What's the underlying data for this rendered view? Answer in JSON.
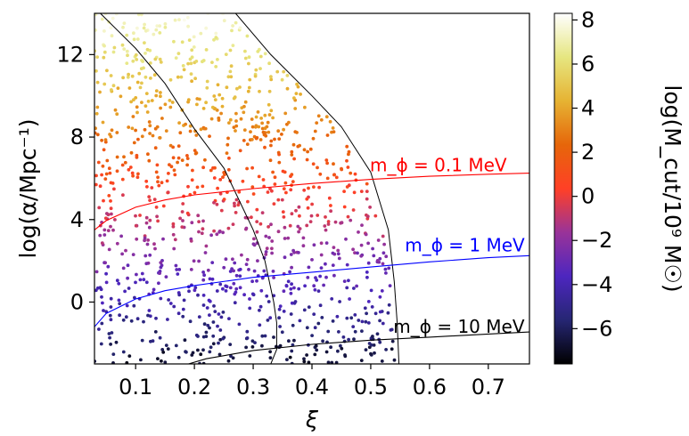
{
  "chart_data": {
    "type": "scatter",
    "xlabel": "ξ",
    "ylabel": "log(α/Mpc⁻¹)",
    "colorbar_label": "log(M_cut/10⁹ M☉)",
    "xlim": [
      0.03,
      0.77
    ],
    "ylim": [
      -3,
      14
    ],
    "x_ticks": [
      0.1,
      0.2,
      0.3,
      0.4,
      0.5,
      0.6,
      0.7
    ],
    "x_tick_labels": [
      "0.1",
      "0.2",
      "0.3",
      "0.4",
      "0.5",
      "0.6",
      "0.7"
    ],
    "y_ticks": [
      0,
      4,
      8,
      12
    ],
    "y_tick_labels": [
      "0",
      "4",
      "8",
      "12"
    ],
    "colorbar_range": [
      -7.6,
      8.3
    ],
    "colorbar_ticks": [
      -6,
      -4,
      -2,
      0,
      2,
      4,
      6,
      8
    ],
    "colorbar_tick_labels": [
      "−6",
      "−4",
      "−2",
      "0",
      "2",
      "4",
      "6",
      "8"
    ],
    "colormap": "CMRmap",
    "grid": false,
    "lines": [
      {
        "label": "m_ϕ = 0.1 MeV",
        "color": "#ff0000",
        "x": [
          0.03,
          0.05,
          0.1,
          0.15,
          0.2,
          0.3,
          0.4,
          0.5,
          0.6,
          0.7,
          0.77
        ],
        "y": [
          3.5,
          3.95,
          4.6,
          4.95,
          5.2,
          5.5,
          5.75,
          5.95,
          6.1,
          6.2,
          6.25
        ]
      },
      {
        "label": "m_ϕ = 1 MeV",
        "color": "#0000ff",
        "x": [
          0.03,
          0.05,
          0.1,
          0.15,
          0.2,
          0.3,
          0.4,
          0.5,
          0.6,
          0.7,
          0.77
        ],
        "y": [
          -1.2,
          -0.55,
          0.15,
          0.55,
          0.8,
          1.2,
          1.45,
          1.7,
          1.95,
          2.15,
          2.25
        ]
      },
      {
        "label": "m_ϕ = 10 MeV",
        "color": "#000000",
        "x": [
          0.19,
          0.22,
          0.3,
          0.4,
          0.5,
          0.6,
          0.7,
          0.77
        ],
        "y": [
          -3.0,
          -2.75,
          -2.35,
          -2.05,
          -1.85,
          -1.7,
          -1.55,
          -1.45
        ]
      }
    ],
    "boundaries": [
      {
        "color": "#000000",
        "x": [
          0.04,
          0.1,
          0.15,
          0.2,
          0.25,
          0.3,
          0.32,
          0.335,
          0.34,
          0.34,
          0.33
        ],
        "y": [
          14.0,
          12.3,
          10.6,
          8.4,
          6.5,
          3.5,
          2.0,
          0.0,
          -1.0,
          -2.3,
          -3.0
        ]
      },
      {
        "color": "#000000",
        "x": [
          0.27,
          0.33,
          0.4,
          0.45,
          0.5,
          0.53,
          0.54,
          0.545,
          0.548
        ],
        "y": [
          14.0,
          12.0,
          10.0,
          8.5,
          6.3,
          3.5,
          1.0,
          -1.0,
          -3.0
        ]
      }
    ],
    "annotations": [
      {
        "text": "m_ϕ = 0.1 MeV",
        "color": "#ff0000",
        "x": 0.615,
        "y": 6.35
      },
      {
        "text": "m_ϕ = 1 MeV",
        "color": "#0000ff",
        "x": 0.66,
        "y": 2.45
      },
      {
        "text": "m_ϕ = 10 MeV",
        "color": "#000000",
        "x": 0.65,
        "y": -1.5
      }
    ],
    "scatter_point_count": 1100
  }
}
